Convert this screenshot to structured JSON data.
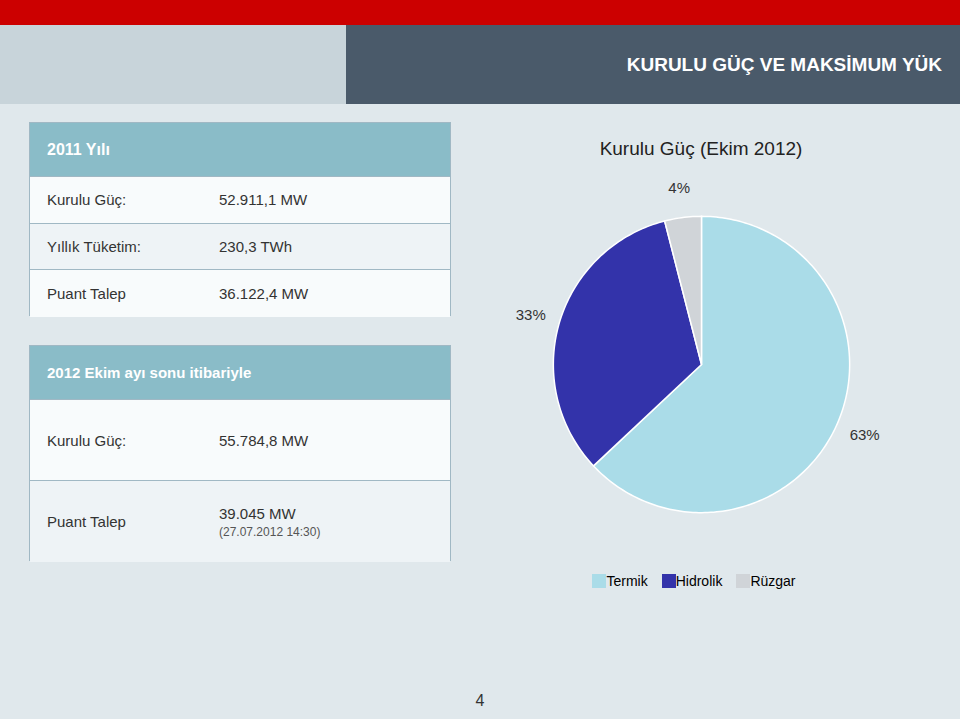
{
  "chart_data": {
    "type": "pie",
    "title": "Kurulu Güç (Ekim 2012)",
    "categories": [
      "Termik",
      "Hidrolik",
      "Rüzgar"
    ],
    "values": [
      63,
      33,
      4
    ],
    "value_labels": [
      "63%",
      "33%",
      "4%"
    ],
    "colors": [
      "#aadce8",
      "#3333aa",
      "#d0d4d8"
    ],
    "data_labels": true,
    "legend": "bottom",
    "annotations": [
      "KURULU GÜÇ VE MAKSİMUM YÜK",
      "2011 Yılı",
      "Kurulu Güç:",
      "52.911,1 MW",
      "Yıllık Tüketim:",
      "230,3 TWh",
      "Puant Talep",
      "36.122,4 MW",
      "2012 Ekim ayı sonu itibariyle",
      "Kurulu Güç:",
      "55.784,8 MW",
      "Puant Talep",
      "39.045 MW",
      "(27.07.2012 14:30)",
      "4"
    ]
  }
}
